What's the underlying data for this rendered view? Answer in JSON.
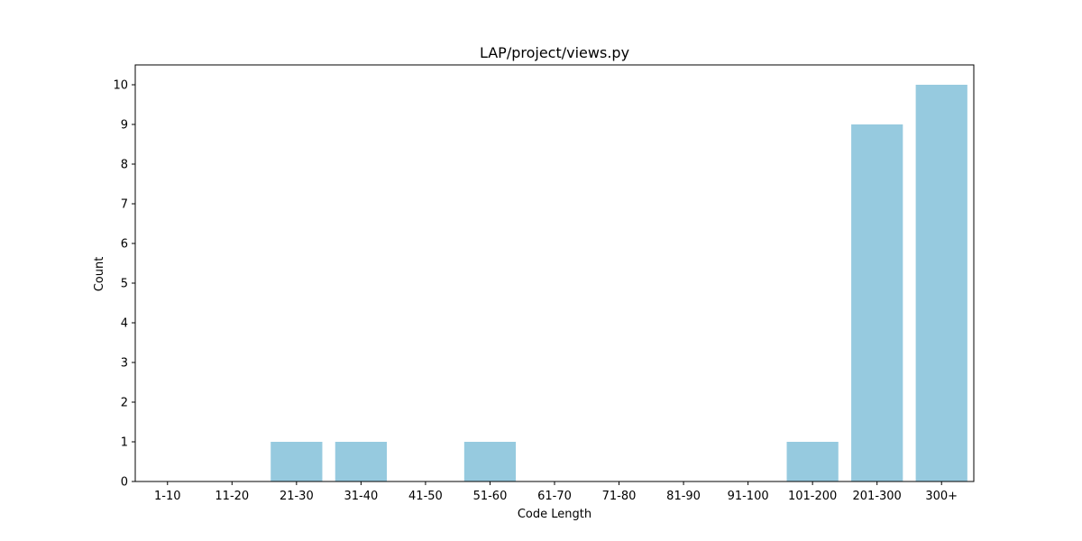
{
  "chart_data": {
    "type": "bar",
    "title": "LAP/project/views.py",
    "xlabel": "Code Length",
    "ylabel": "Count",
    "categories": [
      "1-10",
      "11-20",
      "21-30",
      "31-40",
      "41-50",
      "51-60",
      "61-70",
      "71-80",
      "81-90",
      "91-100",
      "101-200",
      "201-300",
      "300+"
    ],
    "values": [
      0,
      0,
      1,
      1,
      0,
      1,
      0,
      0,
      0,
      0,
      1,
      9,
      10
    ],
    "ylim": [
      0,
      10.5
    ],
    "yticks": [
      0,
      1,
      2,
      3,
      4,
      5,
      6,
      7,
      8,
      9,
      10
    ],
    "bar_color": "#96cadf",
    "grid": false,
    "legend": "none"
  }
}
